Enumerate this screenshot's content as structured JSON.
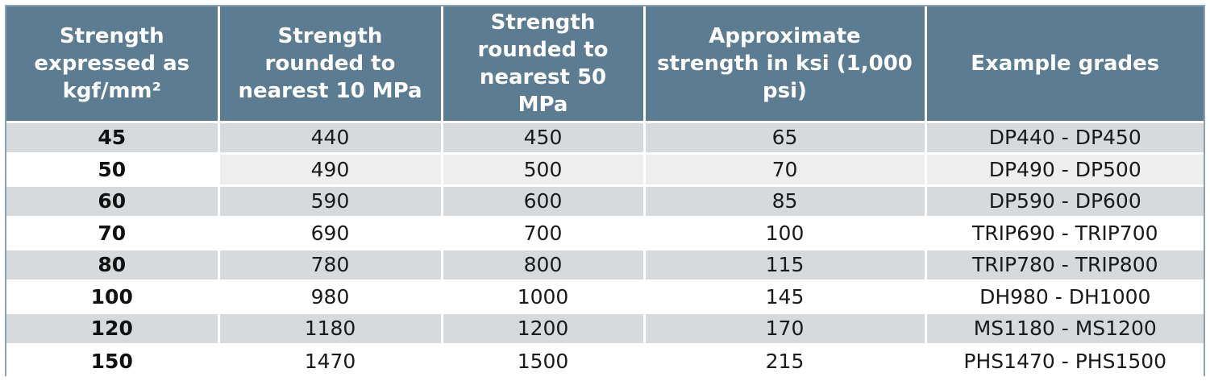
{
  "table": {
    "headers": [
      "Strength expressed as kgf/mm²",
      "Strength rounded to nearest 10 MPa",
      "Strength rounded to nearest 50 MPa",
      "Approximate strength in ksi (1,000 psi)",
      "Example grades"
    ],
    "rows": [
      [
        "45",
        "440",
        "450",
        "65",
        "DP440 - DP450"
      ],
      [
        "50",
        "490",
        "500",
        "70",
        "DP490 - DP500"
      ],
      [
        "60",
        "590",
        "600",
        "85",
        "DP590 - DP600"
      ],
      [
        "70",
        "690",
        "700",
        "100",
        "TRIP690 - TRIP700"
      ],
      [
        "80",
        "780",
        "800",
        "115",
        "TRIP780 - TRIP800"
      ],
      [
        "100",
        "980",
        "1000",
        "145",
        "DH980 - DH1000"
      ],
      [
        "120",
        "1180",
        "1200",
        "170",
        "MS1180 - MS1200"
      ],
      [
        "150",
        "1470",
        "1500",
        "215",
        "PHS1470 - PHS1500"
      ]
    ]
  },
  "colors": {
    "header_bg": "#5b7c91",
    "header_text": "#ffffff",
    "row_shade": "#d7dadd",
    "border": "#8aa3b4"
  }
}
